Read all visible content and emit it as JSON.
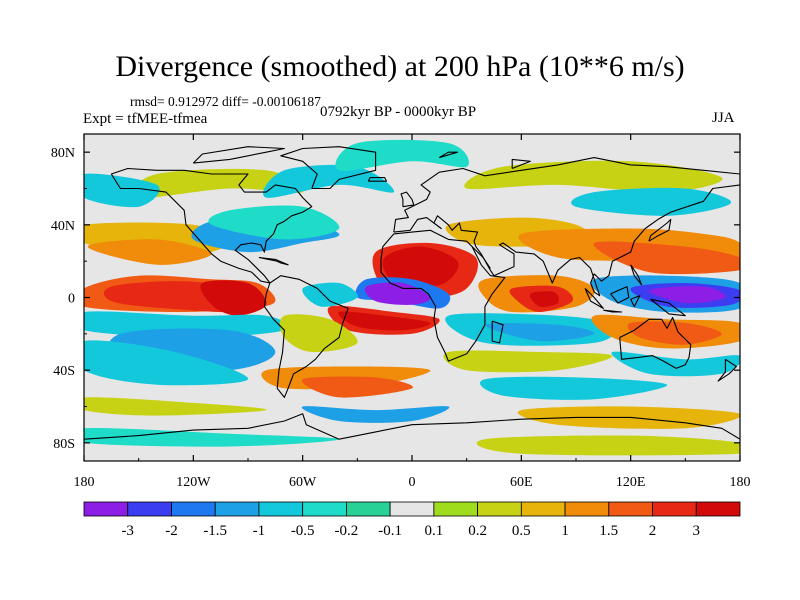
{
  "title": "Divergence (smoothed) at 200 hPa (10**6 m/s)",
  "stats": {
    "rmsd_label": "rmsd=",
    "rmsd": "0.912972",
    "diff_label": "diff=",
    "diff": "-0.00106187",
    "text": "rmsd= 0.912972 diff= -0.00106187"
  },
  "expt": "Expt = tfMEE-tfmea",
  "period": "0792kyr BP - 0000kyr BP",
  "season": "JJA",
  "axes": {
    "lat_ticks": [
      "80N",
      "40N",
      "0",
      "40S",
      "80S"
    ],
    "lon_ticks": [
      "180",
      "120W",
      "60W",
      "0",
      "60E",
      "120E",
      "180"
    ]
  },
  "colorbar": {
    "labels": [
      "-3",
      "-2",
      "-1.5",
      "-1",
      "-0.5",
      "-0.2",
      "-0.1",
      "0.1",
      "0.2",
      "0.5",
      "1",
      "1.5",
      "2",
      "3"
    ],
    "colors": [
      "#8c1ee6",
      "#3c3cf0",
      "#1e78f0",
      "#1ea0e6",
      "#14c8dc",
      "#1edcc8",
      "#28d296",
      "#e6e6e6",
      "#a0dc1e",
      "#c8d214",
      "#e6b40a",
      "#f08c0a",
      "#f05a14",
      "#e62814",
      "#d20a0a"
    ]
  },
  "palette": {
    "neutral": "#e6e6e6",
    "coast": "#000000"
  }
}
